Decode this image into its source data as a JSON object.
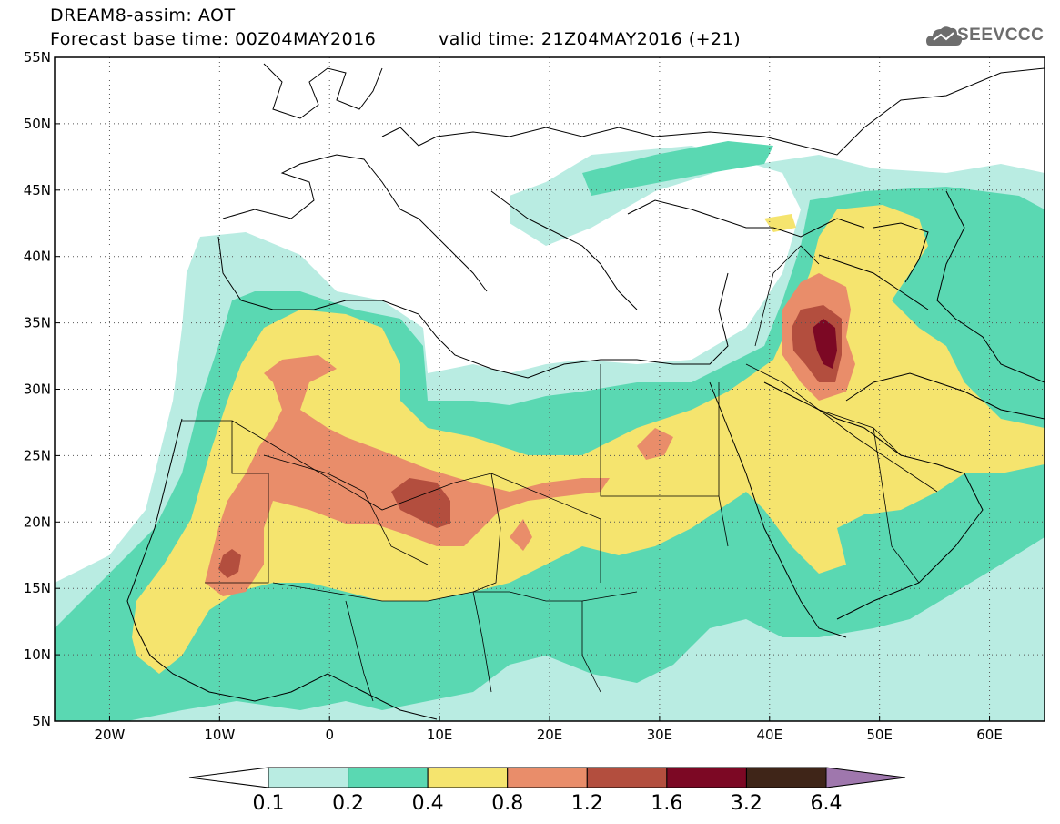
{
  "header": {
    "title": "DREAM8-assim: AOT",
    "base_time": "Forecast base time: 00Z04MAY2016",
    "valid_time": "valid time: 21Z04MAY2016 (+21)",
    "logo_text": "SEEVCCC"
  },
  "map": {
    "lon_range": [
      -25,
      65
    ],
    "lat_range": [
      5,
      55
    ],
    "lat_ticks": [
      {
        "value": 55,
        "label": "55N"
      },
      {
        "value": 50,
        "label": "50N"
      },
      {
        "value": 45,
        "label": "45N"
      },
      {
        "value": 40,
        "label": "40N"
      },
      {
        "value": 35,
        "label": "35N"
      },
      {
        "value": 30,
        "label": "30N"
      },
      {
        "value": 25,
        "label": "25N"
      },
      {
        "value": 20,
        "label": "20N"
      },
      {
        "value": 15,
        "label": "15N"
      },
      {
        "value": 10,
        "label": "10N"
      },
      {
        "value": 5,
        "label": "5N"
      }
    ],
    "lon_ticks": [
      {
        "value": -20,
        "label": "20W"
      },
      {
        "value": -10,
        "label": "10W"
      },
      {
        "value": 0,
        "label": "0"
      },
      {
        "value": 10,
        "label": "10E"
      },
      {
        "value": 20,
        "label": "20E"
      },
      {
        "value": 30,
        "label": "30E"
      },
      {
        "value": 40,
        "label": "40E"
      },
      {
        "value": 50,
        "label": "50E"
      },
      {
        "value": 60,
        "label": "60E"
      }
    ],
    "grid": "dotted"
  },
  "colorbar": {
    "levels": [
      "0.1",
      "0.2",
      "0.4",
      "0.8",
      "1.2",
      "1.6",
      "3.2",
      "6.4"
    ],
    "colors": [
      "#ffffff",
      "#b9ece2",
      "#5ad8b2",
      "#f5e46e",
      "#e98d6a",
      "#b34e3e",
      "#7c0824",
      "#3f2518",
      "#9f77ad"
    ]
  }
}
